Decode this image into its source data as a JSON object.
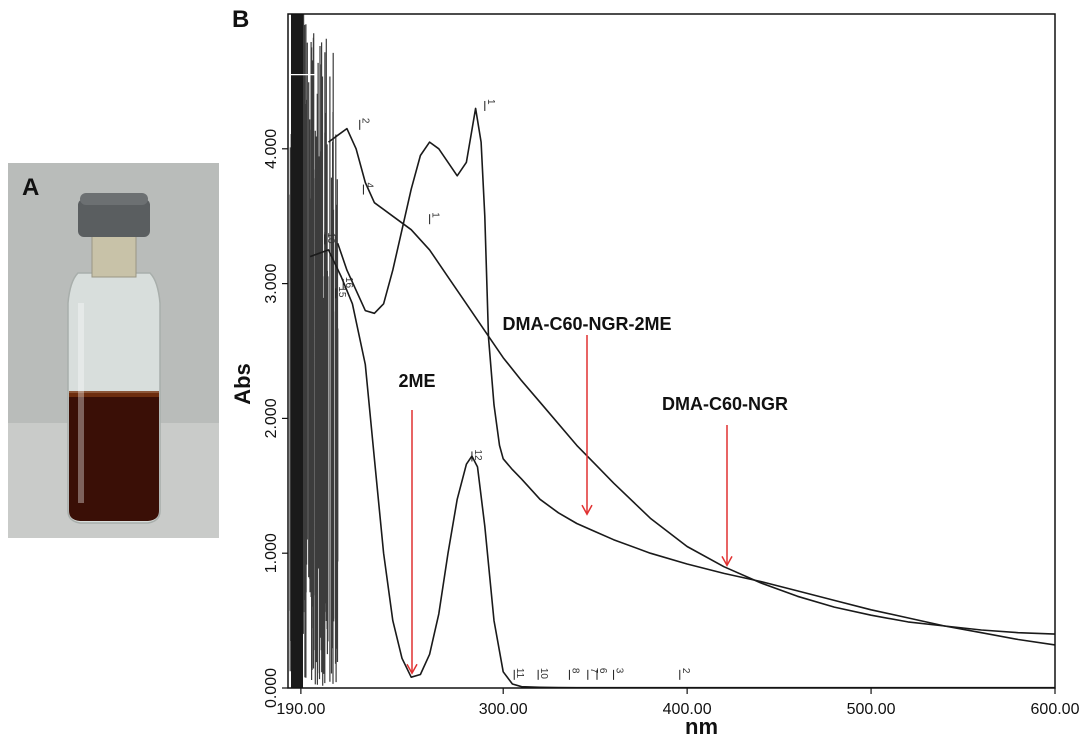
{
  "panels": {
    "a_label": "A",
    "b_label": "B"
  },
  "photo": {
    "icon": "vial-photo",
    "liquid_color": "#3a0f06",
    "background_color": "#b9bcba"
  },
  "colors": {
    "curve": "#1a1a1a",
    "arrow": "#e03030"
  },
  "chart_data": {
    "type": "line",
    "xlabel": "nm",
    "ylabel": "Abs",
    "xlim": [
      183,
      600
    ],
    "ylim": [
      0,
      5.0
    ],
    "x_ticks": [
      190,
      300,
      400,
      500,
      600
    ],
    "x_tick_labels": [
      "190.00",
      "300.00",
      "400.00",
      "500.00",
      "600.00"
    ],
    "y_ticks": [
      0,
      1,
      2,
      3,
      4
    ],
    "y_tick_labels": [
      "0.000",
      "1.000",
      "2.000",
      "3.000",
      "4.000"
    ],
    "grid": false,
    "legend": "none",
    "series": [
      {
        "x": [
          195,
          205,
          212,
          218,
          225,
          230,
          235,
          240,
          245,
          250,
          255,
          260,
          265,
          270,
          275,
          280,
          283,
          286,
          290,
          295,
          300,
          305,
          310,
          320,
          330,
          340,
          360,
          380,
          400,
          420,
          440,
          460,
          480,
          500,
          520,
          540,
          560,
          580,
          600
        ],
        "y": [
          3.2,
          3.25,
          3.05,
          2.85,
          2.4,
          1.7,
          1.0,
          0.5,
          0.22,
          0.08,
          0.1,
          0.25,
          0.55,
          1.0,
          1.4,
          1.66,
          1.72,
          1.64,
          1.2,
          0.5,
          0.12,
          0.03,
          0.01,
          0.005,
          0.003,
          0.002,
          0.002,
          0.002,
          0.002,
          0.002,
          0.002,
          0.002,
          0.002,
          0.002,
          0.002,
          0.002,
          0.002,
          0.002,
          0.002
        ]
      },
      {
        "x": [
          210,
          215,
          220,
          225,
          230,
          235,
          240,
          245,
          250,
          255,
          260,
          265,
          270,
          275,
          280,
          285,
          288,
          290,
          292,
          295,
          298,
          300,
          305,
          310,
          320,
          330,
          340,
          350,
          360,
          380,
          400,
          420,
          440,
          460,
          480,
          500,
          520,
          540,
          560,
          580,
          600
        ],
        "y": [
          3.3,
          3.1,
          2.95,
          2.8,
          2.78,
          2.85,
          3.1,
          3.4,
          3.7,
          3.95,
          4.05,
          4.0,
          3.9,
          3.8,
          3.9,
          4.3,
          4.05,
          3.5,
          2.6,
          2.1,
          1.8,
          1.7,
          1.62,
          1.55,
          1.4,
          1.3,
          1.22,
          1.16,
          1.1,
          1.0,
          0.92,
          0.85,
          0.79,
          0.72,
          0.65,
          0.58,
          0.52,
          0.46,
          0.41,
          0.36,
          0.32
        ]
      },
      {
        "x": [
          205,
          210,
          215,
          220,
          225,
          230,
          240,
          250,
          260,
          270,
          280,
          290,
          300,
          310,
          320,
          340,
          350,
          360,
          380,
          400,
          420,
          440,
          460,
          480,
          500,
          520,
          540,
          560,
          580,
          600
        ],
        "y": [
          4.05,
          4.1,
          4.15,
          4.0,
          3.75,
          3.6,
          3.5,
          3.4,
          3.25,
          3.05,
          2.85,
          2.65,
          2.45,
          2.28,
          2.12,
          1.8,
          1.66,
          1.52,
          1.26,
          1.05,
          0.9,
          0.78,
          0.68,
          0.6,
          0.54,
          0.49,
          0.46,
          0.43,
          0.41,
          0.4
        ]
      }
    ],
    "annotations": [
      {
        "text": "2ME",
        "x": 250,
        "y": 0.08
      },
      {
        "text": "DMA-C60-NGR-2ME",
        "x": 347,
        "y": 1.26
      },
      {
        "text": "DMA-C60-NGR",
        "x": 420,
        "y": 0.88
      }
    ],
    "peak_labels": [
      {
        "text": "1",
        "x": 290,
        "y": 4.34
      },
      {
        "text": "2",
        "x": 222,
        "y": 4.2
      },
      {
        "text": "4",
        "x": 224,
        "y": 3.72
      },
      {
        "text": "1",
        "x": 260,
        "y": 3.5
      },
      {
        "text": "10",
        "x": 203,
        "y": 3.35
      },
      {
        "text": "16",
        "x": 213,
        "y": 3.02
      },
      {
        "text": "15",
        "x": 209,
        "y": 2.95
      },
      {
        "text": "12",
        "x": 283,
        "y": 1.74
      },
      {
        "text": "11",
        "x": 306,
        "y": 0.12
      },
      {
        "text": "10",
        "x": 319,
        "y": 0.12
      },
      {
        "text": "8",
        "x": 336,
        "y": 0.12
      },
      {
        "text": "7",
        "x": 346,
        "y": 0.12
      },
      {
        "text": "6",
        "x": 351,
        "y": 0.12
      },
      {
        "text": "3",
        "x": 360,
        "y": 0.12
      },
      {
        "text": "2",
        "x": 396,
        "y": 0.12
      }
    ]
  }
}
